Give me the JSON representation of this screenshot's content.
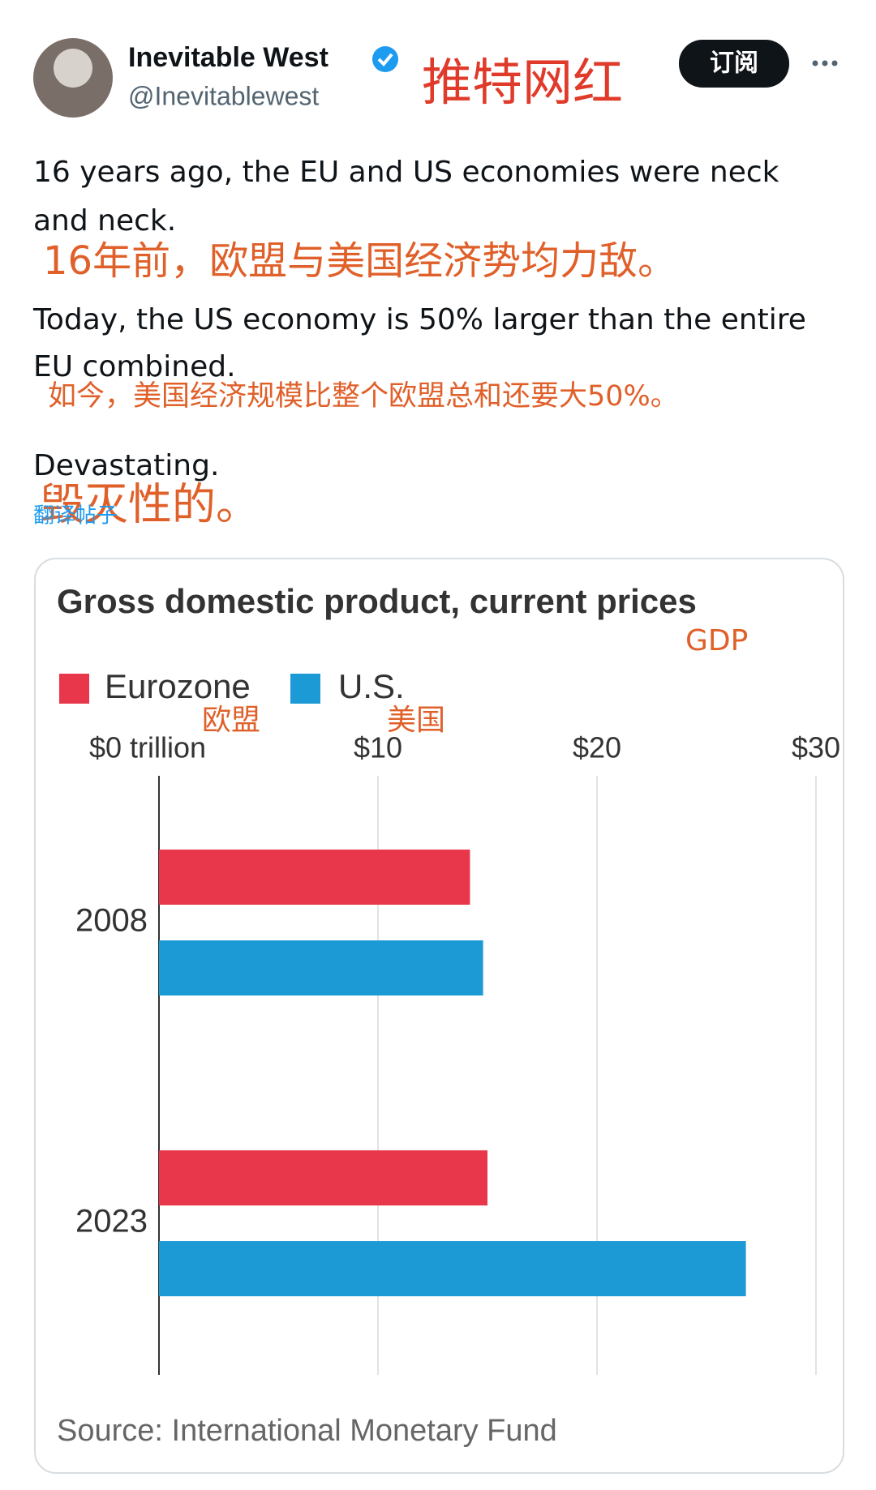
{
  "post": {
    "author": "Inevitable West",
    "handle": "@Inevitablewest",
    "subscribe": "订阅",
    "tag_note": "推特网红",
    "text_lines": [
      "16 years ago, the EU and US economies were neck",
      "and neck.",
      "16年前，欧盟与美国经济势均力敌。",
      "Today, the US economy is 50% larger than the entire",
      "EU combined.",
      "如今，美国经济规模比整个欧盟总和还要大50%。",
      "Devastating.",
      "毁灭性的。"
    ],
    "translate": "翻译帖子"
  },
  "chart_data": {
    "type": "bar",
    "orientation": "horizontal",
    "title": "Gross domestic product, current prices",
    "annotations": [
      "GDP",
      "欧盟",
      "美国"
    ],
    "categories": [
      "2008",
      "2023"
    ],
    "series": [
      {
        "name": "Eurozone",
        "color": "#e8364a",
        "values": [
          14.2,
          15.0
        ]
      },
      {
        "name": "U.S.",
        "color": "#1c9ad6",
        "values": [
          14.8,
          26.8
        ]
      }
    ],
    "xlim": [
      0,
      30
    ],
    "xticks": [
      {
        "value": 0,
        "label": "$0 trillion"
      },
      {
        "value": 10,
        "label": "$10"
      },
      {
        "value": 20,
        "label": "$20"
      },
      {
        "value": 30,
        "label": "$30"
      }
    ],
    "grid": true,
    "source": "Source: International Monetary Fund"
  }
}
